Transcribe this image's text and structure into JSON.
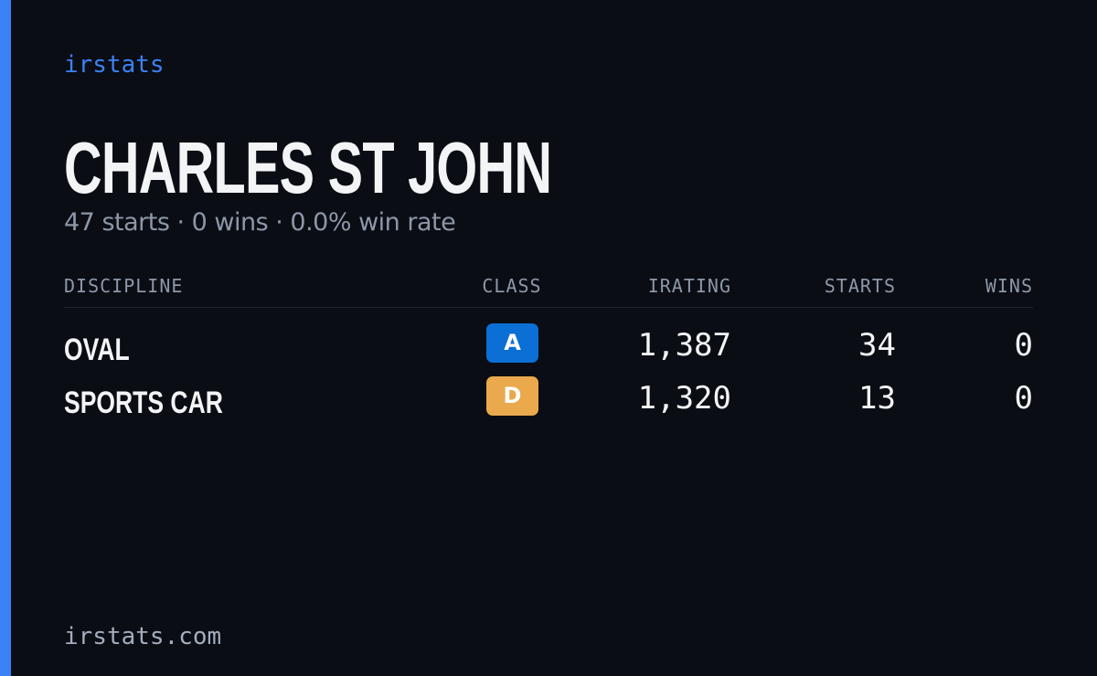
{
  "brand": "irstats",
  "header": {
    "title": "CHARLES ST JOHN",
    "subtitle": "47 starts · 0 wins · 0.0% win rate"
  },
  "table": {
    "columns": [
      "DISCIPLINE",
      "CLASS",
      "IRATING",
      "STARTS",
      "WINS"
    ],
    "rows": [
      {
        "discipline": "OVAL",
        "class": "A",
        "class_color": "#0b6fd6",
        "irating": "1,387",
        "starts": "34",
        "wins": "0"
      },
      {
        "discipline": "SPORTS CAR",
        "class": "D",
        "class_color": "#e9a94c",
        "irating": "1,320",
        "starts": "13",
        "wins": "0"
      }
    ]
  },
  "footer": "irstats.com"
}
